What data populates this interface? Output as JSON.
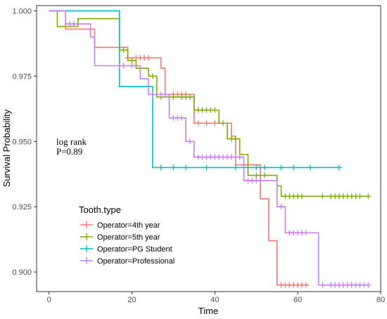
{
  "chart_data": {
    "type": "line",
    "xlabel": "Time",
    "ylabel": "Survival Probability",
    "xlim": [
      -3,
      80
    ],
    "ylim": [
      0.8925,
      1.002
    ],
    "x_ticks": [
      0,
      20,
      40,
      60,
      80
    ],
    "y_ticks": [
      0.9,
      0.925,
      0.95,
      0.975,
      1.0
    ],
    "y_tick_labels": [
      "0.900",
      "0.925",
      "0.950",
      "0.975",
      "1.000"
    ],
    "grid": false,
    "legend": {
      "title": "Tooth.type",
      "placement": "bottom-left"
    },
    "annotation": [
      "log rank",
      "P=0.89"
    ],
    "series": [
      {
        "name": "Operator=4th year",
        "color": "#F8766D",
        "steps": [
          [
            0,
            1.0
          ],
          [
            4,
            0.993
          ],
          [
            11,
            0.986
          ],
          [
            19,
            0.982
          ],
          [
            27,
            0.978
          ],
          [
            28,
            0.968
          ],
          [
            35,
            0.957
          ],
          [
            44,
            0.952
          ],
          [
            45,
            0.941
          ],
          [
            51,
            0.928
          ],
          [
            53,
            0.912
          ],
          [
            55,
            0.895
          ],
          [
            62,
            0.895
          ]
        ],
        "censored": [
          [
            17,
            0.986
          ],
          [
            19,
            0.982
          ],
          [
            21,
            0.982
          ],
          [
            22,
            0.982
          ],
          [
            23,
            0.982
          ],
          [
            24,
            0.982
          ],
          [
            30,
            0.968
          ],
          [
            31,
            0.968
          ],
          [
            32,
            0.968
          ],
          [
            33,
            0.968
          ],
          [
            36,
            0.957
          ],
          [
            38,
            0.957
          ],
          [
            40,
            0.957
          ],
          [
            42,
            0.957
          ],
          [
            56,
            0.895
          ],
          [
            57,
            0.895
          ],
          [
            58,
            0.895
          ],
          [
            59,
            0.895
          ],
          [
            60,
            0.895
          ],
          [
            61,
            0.895
          ],
          [
            62,
            0.895
          ]
        ]
      },
      {
        "name": "Operator=5th year",
        "color": "#7CAE00",
        "steps": [
          [
            0,
            1.0
          ],
          [
            2,
            0.997
          ],
          [
            2,
            0.994
          ],
          [
            7,
            0.997
          ],
          [
            17,
            0.985
          ],
          [
            19,
            0.981
          ],
          [
            21,
            0.978
          ],
          [
            24,
            0.975
          ],
          [
            26,
            0.967
          ],
          [
            31,
            0.967
          ],
          [
            35,
            0.962
          ],
          [
            41,
            0.957
          ],
          [
            43,
            0.951
          ],
          [
            46,
            0.945
          ],
          [
            48,
            0.937
          ],
          [
            55,
            0.933
          ],
          [
            56,
            0.929
          ],
          [
            77,
            0.929
          ]
        ],
        "censored": [
          [
            18,
            0.985
          ],
          [
            20,
            0.981
          ],
          [
            22,
            0.978
          ],
          [
            25,
            0.975
          ],
          [
            27,
            0.967
          ],
          [
            30,
            0.967
          ],
          [
            32,
            0.967
          ],
          [
            33,
            0.967
          ],
          [
            34,
            0.967
          ],
          [
            36,
            0.962
          ],
          [
            37,
            0.962
          ],
          [
            38,
            0.962
          ],
          [
            39,
            0.962
          ],
          [
            40,
            0.962
          ],
          [
            44,
            0.951
          ],
          [
            45,
            0.951
          ],
          [
            50,
            0.937
          ],
          [
            52,
            0.937
          ],
          [
            57,
            0.929
          ],
          [
            58,
            0.929
          ],
          [
            59,
            0.929
          ],
          [
            60,
            0.929
          ],
          [
            61,
            0.929
          ],
          [
            66,
            0.929
          ],
          [
            68,
            0.929
          ],
          [
            69,
            0.929
          ],
          [
            70,
            0.929
          ],
          [
            71,
            0.929
          ],
          [
            72,
            0.929
          ],
          [
            73,
            0.929
          ],
          [
            74,
            0.929
          ],
          [
            75,
            0.929
          ],
          [
            77,
            0.929
          ]
        ]
      },
      {
        "name": "Operator=PG Student",
        "color": "#00BFC4",
        "steps": [
          [
            0,
            1.0
          ],
          [
            17,
            0.971
          ],
          [
            25,
            0.94
          ],
          [
            70,
            0.94
          ]
        ],
        "censored": [
          [
            27,
            0.94
          ],
          [
            30,
            0.94
          ],
          [
            33,
            0.94
          ],
          [
            38,
            0.94
          ],
          [
            45,
            0.94
          ],
          [
            50,
            0.94
          ],
          [
            52,
            0.94
          ],
          [
            56,
            0.94
          ],
          [
            59,
            0.94
          ],
          [
            63,
            0.94
          ],
          [
            70,
            0.94
          ]
        ]
      },
      {
        "name": "Operator=Professional",
        "color": "#C77CFF",
        "steps": [
          [
            0,
            1.0
          ],
          [
            4,
            0.995
          ],
          [
            10,
            0.99
          ],
          [
            11,
            0.979
          ],
          [
            19,
            0.979
          ],
          [
            22,
            0.974
          ],
          [
            24,
            0.968
          ],
          [
            29,
            0.959
          ],
          [
            33,
            0.95
          ],
          [
            35,
            0.944
          ],
          [
            47,
            0.935
          ],
          [
            55,
            0.925
          ],
          [
            57,
            0.915
          ],
          [
            65,
            0.895
          ],
          [
            77,
            0.895
          ]
        ],
        "censored": [
          [
            5,
            0.995
          ],
          [
            6,
            0.995
          ],
          [
            17,
            0.979
          ],
          [
            18,
            0.979
          ],
          [
            20,
            0.979
          ],
          [
            25,
            0.968
          ],
          [
            27,
            0.968
          ],
          [
            28,
            0.968
          ],
          [
            30,
            0.959
          ],
          [
            31,
            0.959
          ],
          [
            32,
            0.959
          ],
          [
            34,
            0.95
          ],
          [
            36,
            0.944
          ],
          [
            37,
            0.944
          ],
          [
            38,
            0.944
          ],
          [
            39,
            0.944
          ],
          [
            40,
            0.944
          ],
          [
            41,
            0.944
          ],
          [
            42,
            0.944
          ],
          [
            43,
            0.944
          ],
          [
            44,
            0.944
          ],
          [
            45,
            0.944
          ],
          [
            46,
            0.944
          ],
          [
            48,
            0.935
          ],
          [
            49,
            0.935
          ],
          [
            50,
            0.935
          ],
          [
            51,
            0.935
          ],
          [
            56,
            0.925
          ],
          [
            58,
            0.915
          ],
          [
            59,
            0.915
          ],
          [
            60,
            0.915
          ],
          [
            61,
            0.915
          ],
          [
            62,
            0.915
          ],
          [
            66,
            0.895
          ],
          [
            68,
            0.895
          ],
          [
            69,
            0.895
          ],
          [
            70,
            0.895
          ],
          [
            71,
            0.895
          ],
          [
            72,
            0.895
          ],
          [
            73,
            0.895
          ],
          [
            74,
            0.895
          ],
          [
            75,
            0.895
          ],
          [
            76,
            0.895
          ],
          [
            77,
            0.895
          ]
        ]
      }
    ]
  }
}
